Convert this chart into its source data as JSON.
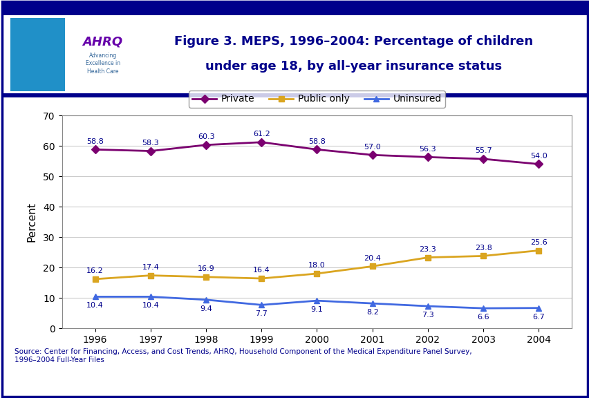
{
  "title_line1": "Figure 3. MEPS, 1996–2004: Percentage of children",
  "title_line2": "under age 18, by all-year insurance status",
  "years": [
    1996,
    1997,
    1998,
    1999,
    2000,
    2001,
    2002,
    2003,
    2004
  ],
  "private": [
    58.8,
    58.3,
    60.3,
    61.2,
    58.8,
    57.0,
    56.3,
    55.7,
    54.0
  ],
  "public_only": [
    16.2,
    17.4,
    16.9,
    16.4,
    18.0,
    20.4,
    23.3,
    23.8,
    25.6
  ],
  "uninsured": [
    10.4,
    10.4,
    9.4,
    7.7,
    9.1,
    8.2,
    7.3,
    6.6,
    6.7
  ],
  "private_color": "#7B0070",
  "public_color": "#DAA520",
  "uninsured_color": "#4169E1",
  "label_color": "#00008B",
  "ylabel": "Percent",
  "ylim": [
    0,
    70
  ],
  "yticks": [
    0,
    10,
    20,
    30,
    40,
    50,
    60,
    70
  ],
  "background_color": "#FFFFFF",
  "plot_bg_color": "#FFFFFF",
  "border_color": "#00008B",
  "title_color": "#00008B",
  "source_text": "Source: Center for Financing, Access, and Cost Trends, AHRQ, Household Component of the Medical Expenditure Panel Survey,\n1996–2004 Full-Year Files",
  "top_bar_color": "#00008B",
  "separator_color": "#00008B",
  "grid_color": "#CCCCCC",
  "header_bg": "#F8F8F8",
  "logo_bg": "#2090C8"
}
